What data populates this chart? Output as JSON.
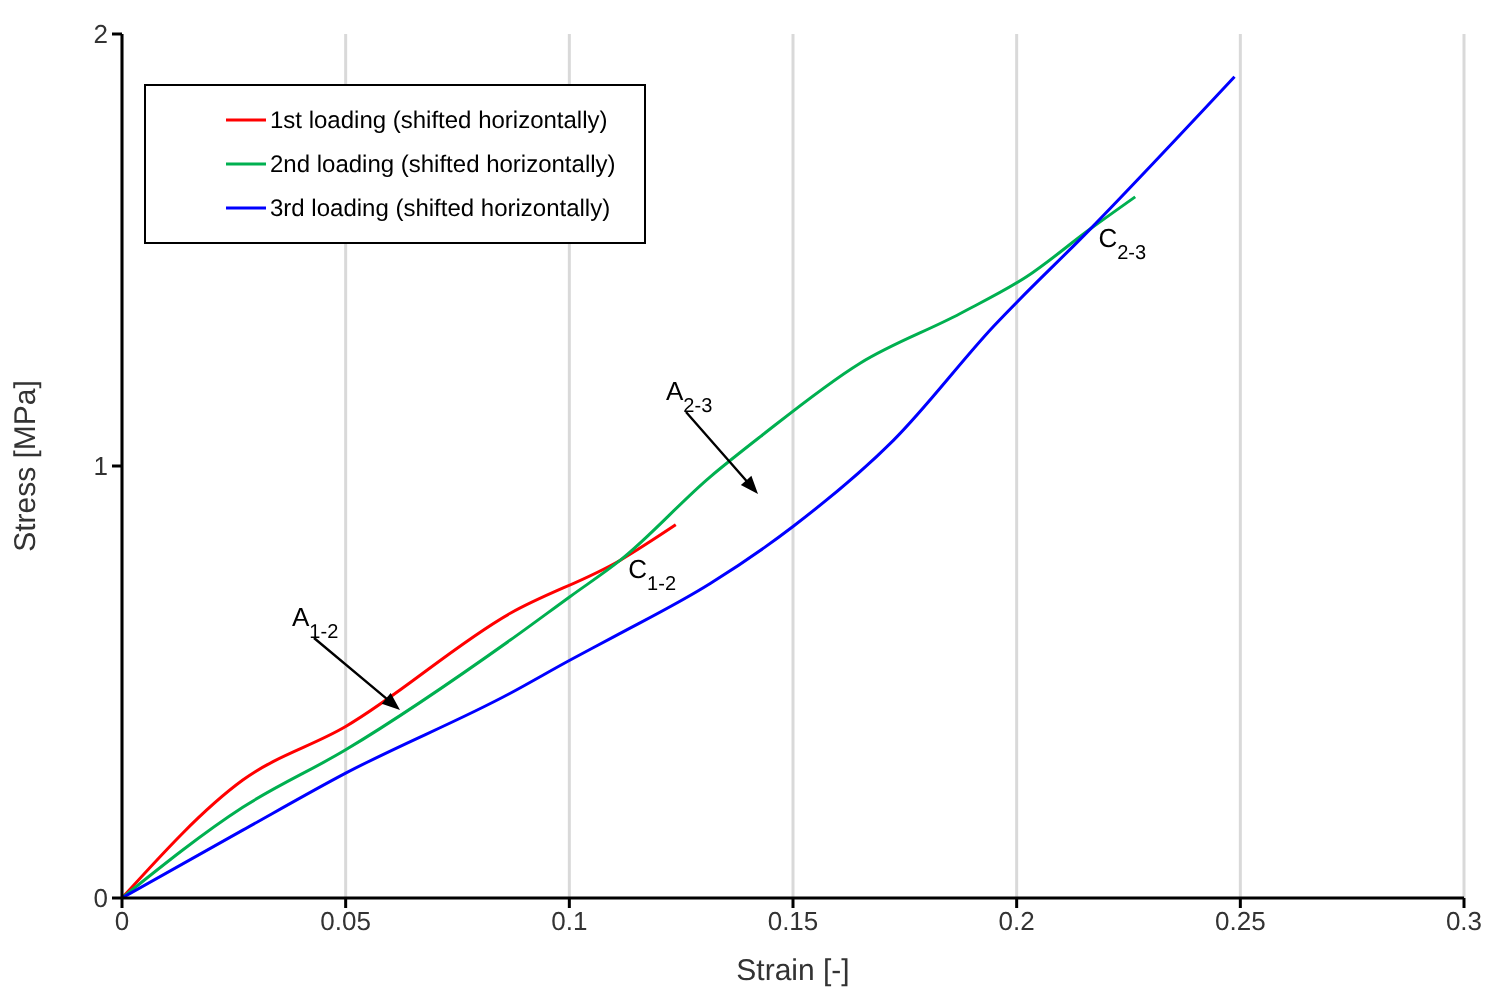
{
  "chart_data": {
    "type": "line",
    "xlabel": "Strain [-]",
    "ylabel": "Stress [MPa]",
    "xlim": [
      0,
      0.3
    ],
    "xticks": [
      0,
      0.05,
      0.1,
      0.15,
      0.2,
      0.25,
      0.3
    ],
    "ylim": [
      0,
      2
    ],
    "yticks": [
      0,
      1,
      2
    ],
    "grid": "x",
    "legend": "top left",
    "series": [
      {
        "name": "1st loading (shifted horizontally)",
        "color": "#ff0000",
        "x": [
          0,
          0.027,
          0.05,
          0.0868,
          0.1114,
          0.1238
        ],
        "values": [
          0,
          0.273,
          0.397,
          0.659,
          0.782,
          0.864
        ]
      },
      {
        "name": "2nd loading (shifted horizontally)",
        "color": "#00b050",
        "x": [
          0,
          0.027,
          0.05,
          0.0868,
          0.1002,
          0.1114,
          0.1315,
          0.1427,
          0.165,
          0.1874,
          0.2022,
          0.2165,
          0.2265
        ],
        "values": [
          0,
          0.21,
          0.343,
          0.597,
          0.698,
          0.782,
          0.975,
          1.068,
          1.238,
          1.353,
          1.438,
          1.549,
          1.623
        ]
      },
      {
        "name": "3rd loading (shifted horizontally)",
        "color": "#0000ff",
        "x": [
          0,
          0.027,
          0.05,
          0.0868,
          0.1002,
          0.11,
          0.1315,
          0.15,
          0.1725,
          0.1948,
          0.2165,
          0.2487
        ],
        "values": [
          0,
          0.157,
          0.289,
          0.474,
          0.551,
          0.605,
          0.728,
          0.86,
          1.06,
          1.323,
          1.549,
          1.901
        ]
      }
    ],
    "annotations": [
      "A$_{1-2}$",
      {
        "text": "C$_{1-2}$",
        "x": 0.1114,
        "y": 0.782
      },
      "A$_{2-3}$",
      {
        "text": "C$_{2-3}$",
        "x": 0.2165,
        "y": 1.549
      }
    ]
  }
}
